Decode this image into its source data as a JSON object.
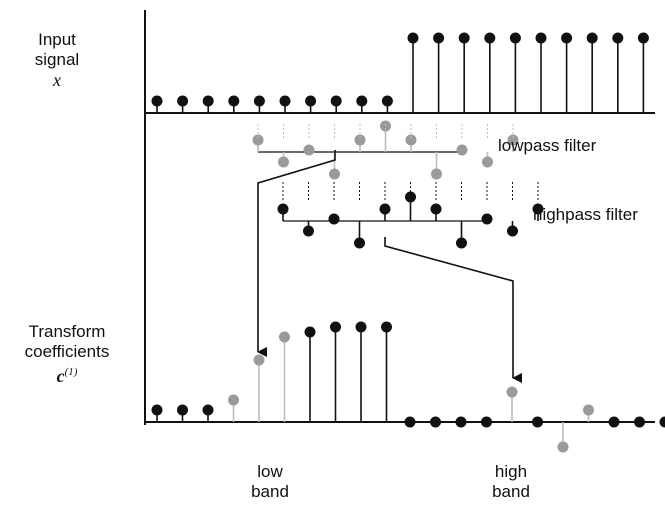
{
  "labels": {
    "input_line1": "Input",
    "input_line2": "signal",
    "input_symbol": "x",
    "lowpass": "lowpass filter",
    "highpass": "highpass filter",
    "transform_line1": "Transform",
    "transform_line2": "coefficients",
    "transform_symbol": "c",
    "transform_superscript": "(1)",
    "low_line1": "low",
    "low_line2": "band",
    "high_line1": "high",
    "high_line2": "band"
  },
  "signal": {
    "values": [
      0,
      0,
      0,
      0,
      0,
      0,
      0,
      0,
      0,
      0,
      1,
      1,
      1,
      1,
      1,
      1,
      1,
      1,
      1,
      1
    ]
  },
  "lowpass_taps": {
    "values": [
      0.3,
      -0.25,
      0.05,
      -0.55,
      0.3,
      0.65,
      0.3,
      -0.55,
      0.05,
      -0.25,
      0.3
    ]
  },
  "highpass_taps": {
    "values": [
      0.3,
      -0.25,
      0.05,
      -0.55,
      0.3,
      0.6,
      0.3,
      -0.55,
      0.05,
      -0.25,
      0.3
    ]
  },
  "coefficients": {
    "low_band": [
      0.12,
      0.12,
      0.12,
      0.22,
      0.62,
      0.85,
      0.9,
      0.95,
      0.95,
      0.95
    ],
    "high_band": [
      0.0,
      0.0,
      0.0,
      0.0,
      0.3,
      0.0,
      -0.25,
      0.12,
      0.0,
      0.0,
      0.0,
      0.0
    ]
  },
  "colors": {
    "ink": "#111111",
    "gray_marker": "#9a9a9a",
    "gray_stem": "#bdbdbd"
  }
}
